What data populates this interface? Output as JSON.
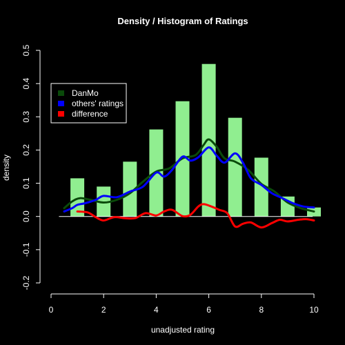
{
  "chart_data": {
    "type": "bar",
    "title": "Density / Histogram of Ratings",
    "xlabel": "unadjusted rating",
    "ylabel": "density",
    "xlim": [
      0,
      10
    ],
    "ylim": [
      -0.2,
      0.5
    ],
    "x_ticks": [
      "0",
      "2",
      "4",
      "6",
      "8",
      "10"
    ],
    "y_ticks": [
      "-0.2",
      "-0.1",
      "0.0",
      "0.1",
      "0.2",
      "0.3",
      "0.4",
      "0.5"
    ],
    "grid": false,
    "legend_position": "top-left",
    "histogram": {
      "color": "#90EE90",
      "bars": [
        {
          "x": 1,
          "value": 0.115
        },
        {
          "x": 2,
          "value": 0.09
        },
        {
          "x": 3,
          "value": 0.165
        },
        {
          "x": 4,
          "value": 0.262
        },
        {
          "x": 5,
          "value": 0.347
        },
        {
          "x": 6,
          "value": 0.459
        },
        {
          "x": 7,
          "value": 0.297
        },
        {
          "x": 8,
          "value": 0.177
        },
        {
          "x": 9,
          "value": 0.06
        },
        {
          "x": 10,
          "value": 0.027
        }
      ]
    },
    "series": [
      {
        "name": "DanMo",
        "color": "#0a4a0a",
        "points": [
          [
            0.5,
            0.025
          ],
          [
            0.8,
            0.045
          ],
          [
            1.1,
            0.055
          ],
          [
            1.5,
            0.05
          ],
          [
            2.0,
            0.042
          ],
          [
            2.5,
            0.05
          ],
          [
            3.0,
            0.07
          ],
          [
            3.5,
            0.105
          ],
          [
            4.0,
            0.135
          ],
          [
            4.5,
            0.145
          ],
          [
            5.0,
            0.175
          ],
          [
            5.5,
            0.185
          ],
          [
            5.8,
            0.215
          ],
          [
            6.0,
            0.232
          ],
          [
            6.3,
            0.21
          ],
          [
            6.6,
            0.175
          ],
          [
            7.0,
            0.165
          ],
          [
            7.5,
            0.14
          ],
          [
            8.0,
            0.098
          ],
          [
            8.5,
            0.075
          ],
          [
            9.0,
            0.042
          ],
          [
            9.5,
            0.025
          ],
          [
            10.0,
            0.015
          ]
        ]
      },
      {
        "name": "others' ratings",
        "color": "#0000ff",
        "points": [
          [
            0.5,
            0.015
          ],
          [
            0.8,
            0.025
          ],
          [
            1.0,
            0.035
          ],
          [
            1.3,
            0.04
          ],
          [
            1.7,
            0.05
          ],
          [
            2.0,
            0.062
          ],
          [
            2.5,
            0.058
          ],
          [
            3.0,
            0.075
          ],
          [
            3.5,
            0.09
          ],
          [
            4.0,
            0.132
          ],
          [
            4.3,
            0.12
          ],
          [
            4.6,
            0.14
          ],
          [
            5.0,
            0.18
          ],
          [
            5.3,
            0.168
          ],
          [
            5.6,
            0.178
          ],
          [
            6.0,
            0.208
          ],
          [
            6.3,
            0.183
          ],
          [
            6.6,
            0.162
          ],
          [
            7.0,
            0.19
          ],
          [
            7.3,
            0.162
          ],
          [
            7.6,
            0.115
          ],
          [
            8.0,
            0.095
          ],
          [
            8.4,
            0.07
          ],
          [
            8.8,
            0.055
          ],
          [
            9.2,
            0.04
          ],
          [
            9.6,
            0.03
          ],
          [
            10.0,
            0.027
          ]
        ]
      },
      {
        "name": "difference",
        "color": "#ff0000",
        "points": [
          [
            1.0,
            0.015
          ],
          [
            1.4,
            0.012
          ],
          [
            1.7,
            -0.002
          ],
          [
            2.0,
            -0.012
          ],
          [
            2.4,
            -0.002
          ],
          [
            2.8,
            -0.005
          ],
          [
            3.2,
            -0.005
          ],
          [
            3.6,
            0.01
          ],
          [
            4.0,
            0.003
          ],
          [
            4.3,
            0.015
          ],
          [
            4.6,
            0.02
          ],
          [
            5.0,
            0.001
          ],
          [
            5.3,
            0.005
          ],
          [
            5.6,
            0.03
          ],
          [
            5.8,
            0.037
          ],
          [
            6.1,
            0.03
          ],
          [
            6.4,
            0.02
          ],
          [
            6.7,
            0.01
          ],
          [
            7.0,
            -0.03
          ],
          [
            7.3,
            -0.022
          ],
          [
            7.6,
            -0.018
          ],
          [
            8.0,
            -0.033
          ],
          [
            8.4,
            -0.02
          ],
          [
            8.7,
            -0.01
          ],
          [
            9.0,
            -0.015
          ],
          [
            9.4,
            -0.01
          ],
          [
            9.7,
            -0.008
          ],
          [
            10.0,
            -0.012
          ]
        ]
      }
    ]
  }
}
